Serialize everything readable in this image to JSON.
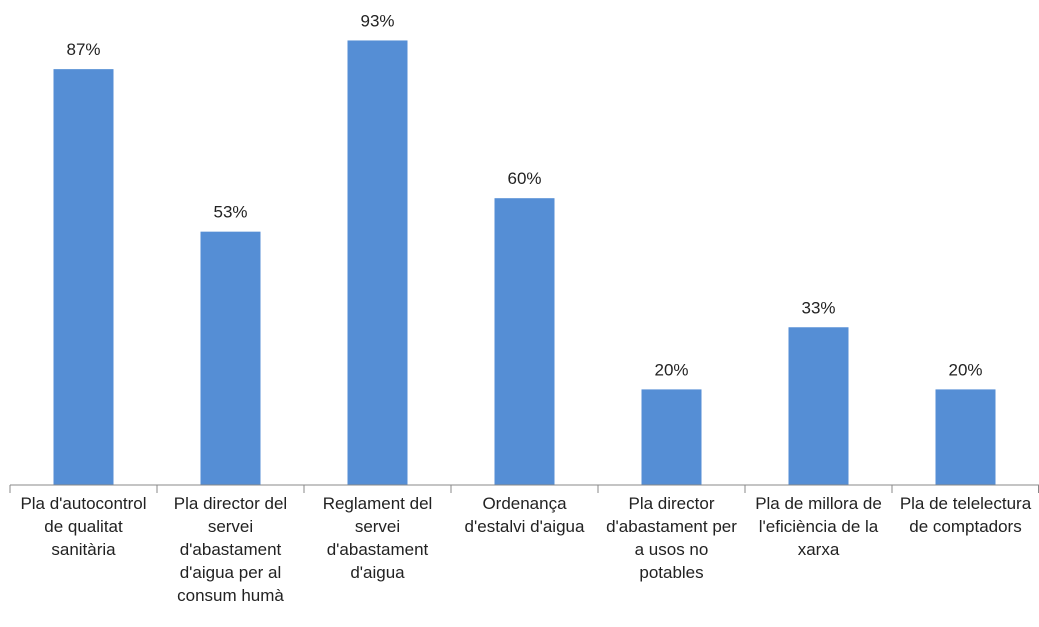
{
  "chart_data": {
    "type": "bar",
    "categories": [
      "Pla d'autocontrol de qualitat sanitària",
      "Pla director del servei d'abastament d'aigua per al consum humà",
      "Reglament del servei d'abastament d'aigua",
      "Ordenança d'estalvi d'aigua",
      "Pla director d'abastament per a usos no potables",
      "Pla de millora de l'eficiència de la xarxa",
      "Pla de telelectura de comptadors"
    ],
    "values": [
      87,
      53,
      93,
      60,
      20,
      33,
      20
    ],
    "value_labels": [
      "87%",
      "53%",
      "93%",
      "60%",
      "20%",
      "33%",
      "20%"
    ],
    "color": "#558ed5",
    "ylim": [
      0,
      100
    ]
  }
}
